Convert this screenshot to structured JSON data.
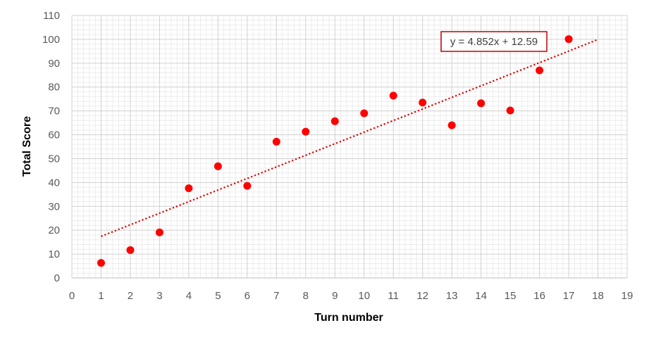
{
  "chart_data": {
    "type": "scatter",
    "xlabel": "Turn number",
    "ylabel": "Total Score",
    "xlim": [
      0,
      19
    ],
    "ylim": [
      0,
      110
    ],
    "x_ticks": [
      0,
      1,
      2,
      3,
      4,
      5,
      6,
      7,
      8,
      9,
      10,
      11,
      12,
      13,
      14,
      15,
      16,
      17,
      18,
      19
    ],
    "y_ticks": [
      0,
      10,
      20,
      30,
      40,
      50,
      60,
      70,
      80,
      90,
      100,
      110
    ],
    "grid": true,
    "minor_grid": true,
    "series": [
      {
        "color": "#ff0000",
        "x": [
          1,
          2,
          3,
          4,
          5,
          6,
          7,
          8,
          9,
          10,
          11,
          12,
          13,
          14,
          15,
          16,
          17
        ],
        "y": [
          6.3,
          11.7,
          19.1,
          37.6,
          46.8,
          38.6,
          57.1,
          61.3,
          65.7,
          69.0,
          76.4,
          73.5,
          64.0,
          73.2,
          70.2,
          87.0,
          100.1
        ]
      }
    ],
    "trendline": {
      "type": "linear",
      "slope": 4.852,
      "intercept": 12.59,
      "x_range": [
        1,
        18
      ],
      "color": "#e00000",
      "style": "dotted",
      "equation_label": "y = 4.852x + 12.59",
      "equation_box_color": "#c00000"
    }
  }
}
